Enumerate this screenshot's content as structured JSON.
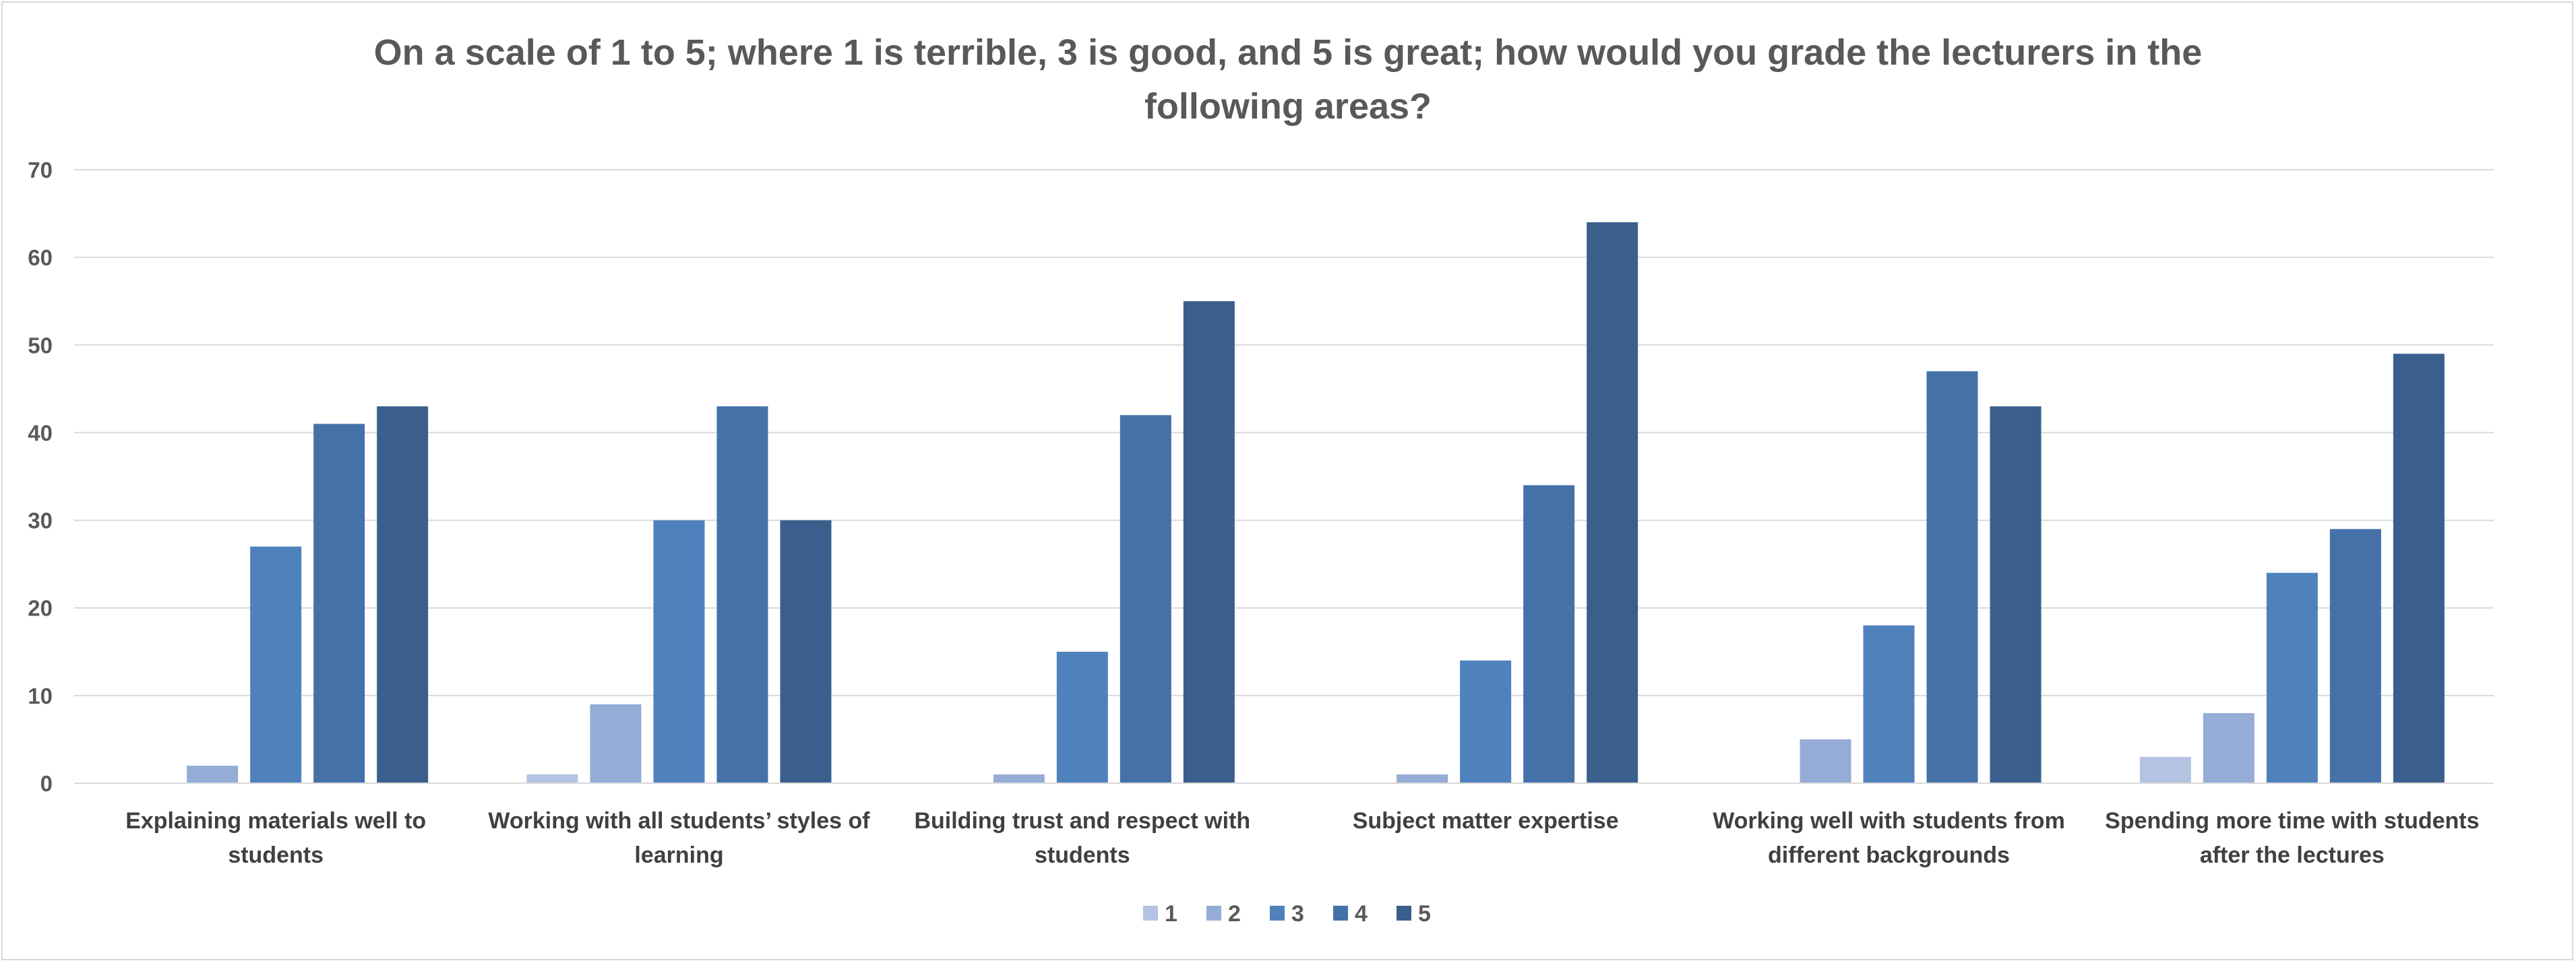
{
  "chart_data": {
    "type": "bar",
    "title": "On a scale of 1 to 5; where 1 is terrible, 3 is good, and 5 is great; how would you grade the lecturers in the following areas?",
    "xlabel": "",
    "ylabel": "",
    "ylim": [
      0,
      70
    ],
    "yticks": [
      0,
      10,
      20,
      30,
      40,
      50,
      60,
      70
    ],
    "grid": true,
    "legend_position": "bottom",
    "categories": [
      [
        "Explaining materials well to",
        "students"
      ],
      [
        "Working with all students’ styles of",
        "learning"
      ],
      [
        "Building trust and respect with",
        "students"
      ],
      [
        "Subject matter expertise"
      ],
      [
        "Working well with students from",
        "different backgrounds"
      ],
      [
        "Spending more time with students",
        "after the lectures"
      ]
    ],
    "series": [
      {
        "name": "1",
        "color": "#b4c3e2",
        "values": [
          0,
          1,
          0,
          0,
          0,
          3
        ]
      },
      {
        "name": "2",
        "color": "#94acd6",
        "values": [
          2,
          9,
          1,
          1,
          5,
          8
        ]
      },
      {
        "name": "3",
        "color": "#4f81bd",
        "values": [
          27,
          30,
          15,
          14,
          18,
          24
        ]
      },
      {
        "name": "4",
        "color": "#4472a8",
        "values": [
          41,
          43,
          42,
          34,
          47,
          29
        ]
      },
      {
        "name": "5",
        "color": "#3a5f8d",
        "values": [
          43,
          30,
          55,
          64,
          43,
          49
        ]
      }
    ]
  }
}
